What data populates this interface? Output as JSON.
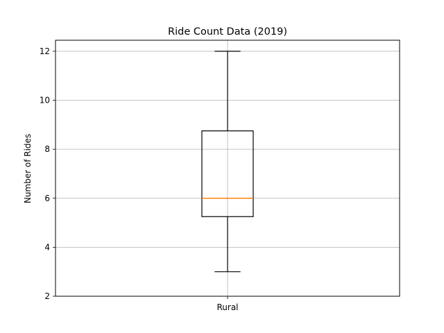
{
  "chart_data": {
    "type": "box",
    "title": "Ride Count Data (2019)",
    "xlabel": "",
    "ylabel": "Number of Rides",
    "ylim": [
      2,
      12.45
    ],
    "yticks": [
      2,
      4,
      6,
      8,
      10,
      12
    ],
    "ytick_labels": [
      "2",
      "4",
      "6",
      "8",
      "10",
      "12"
    ],
    "grid": true,
    "categories": [
      "Rural"
    ],
    "boxes": [
      {
        "label": "Rural",
        "whisker_low": 3,
        "q1": 5.25,
        "median": 6,
        "q3": 8.75,
        "whisker_high": 12
      }
    ],
    "colors": {
      "box": "#000000",
      "median": "#ff7f0e",
      "grid": "#b0b0b0"
    }
  }
}
